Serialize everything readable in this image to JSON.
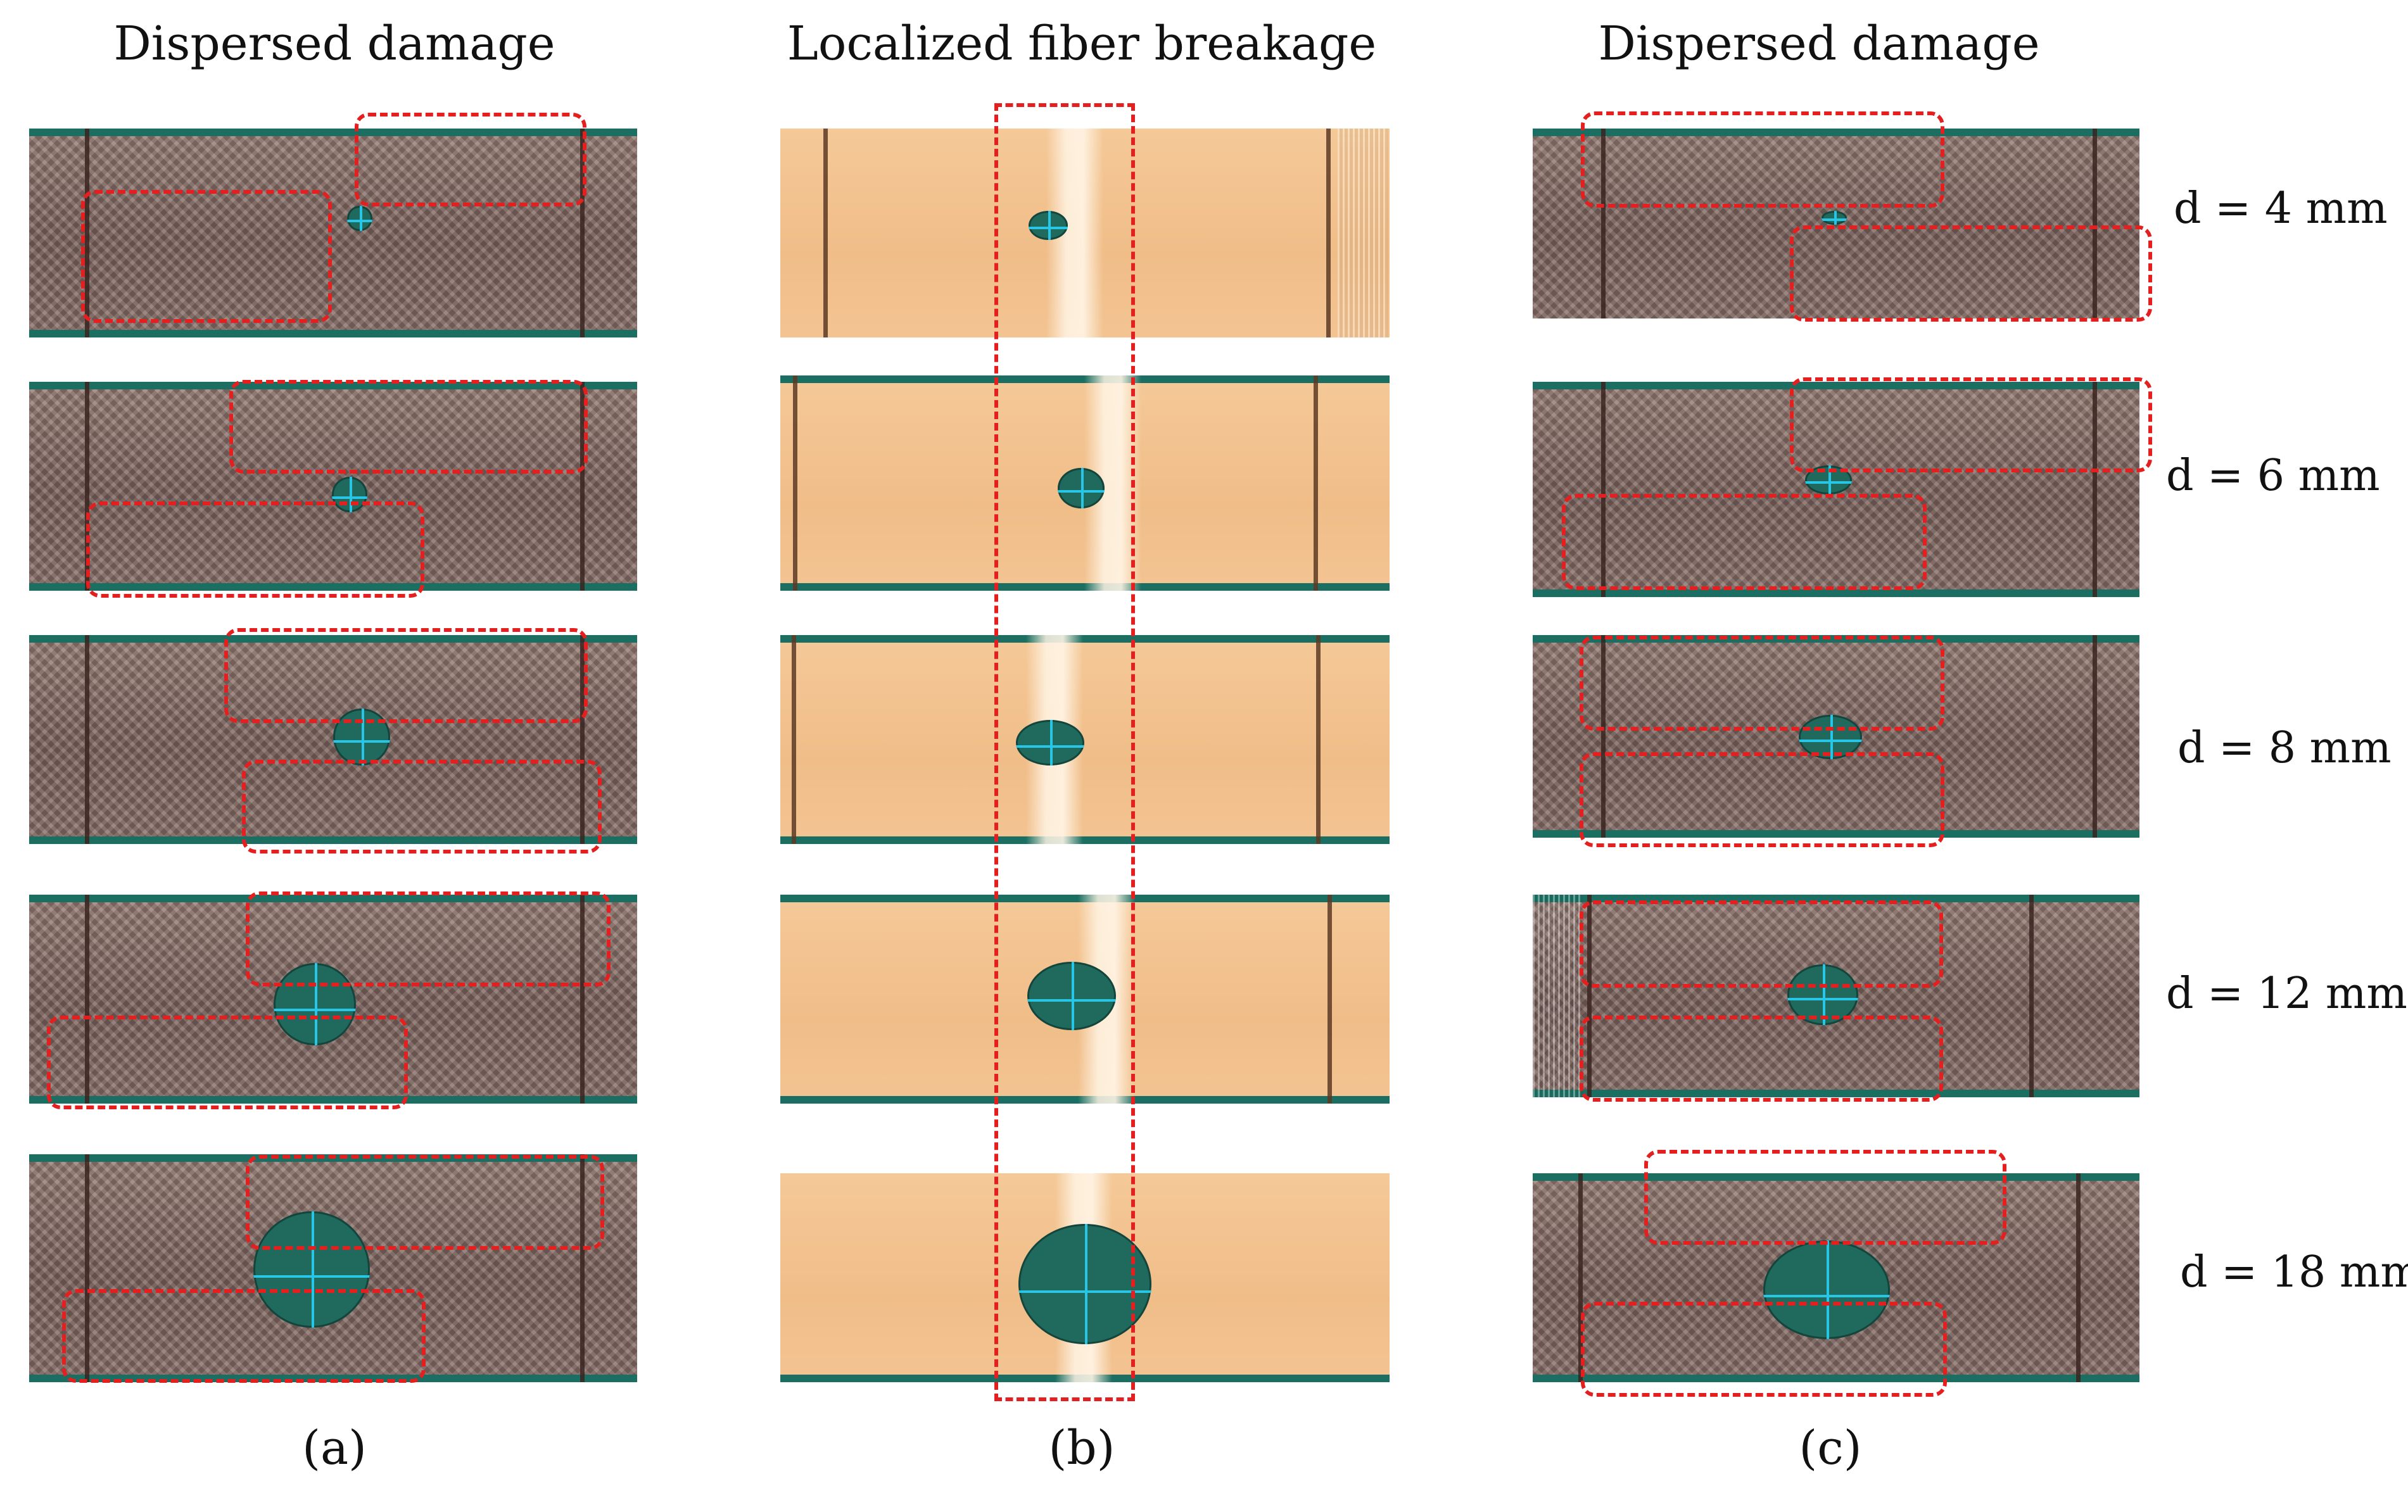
{
  "headings": {
    "a": "Dispersed damage",
    "b": "Localized fiber breakage",
    "c": "Dispersed damage"
  },
  "panel_labels": {
    "a": "(a)",
    "b": "(b)",
    "c": "(c)"
  },
  "diameters": [
    "d = 4 mm",
    "d = 6 mm",
    "d = 8 mm",
    "d = 12 mm",
    "d = 18 mm"
  ],
  "colors": {
    "dashed_box": "#e3201f",
    "carbon_specimen": "#8a7069",
    "glass_specimen": "#f2c390",
    "cutting_mat": "#1b6f62",
    "grid_line": "#27c6e6"
  }
}
